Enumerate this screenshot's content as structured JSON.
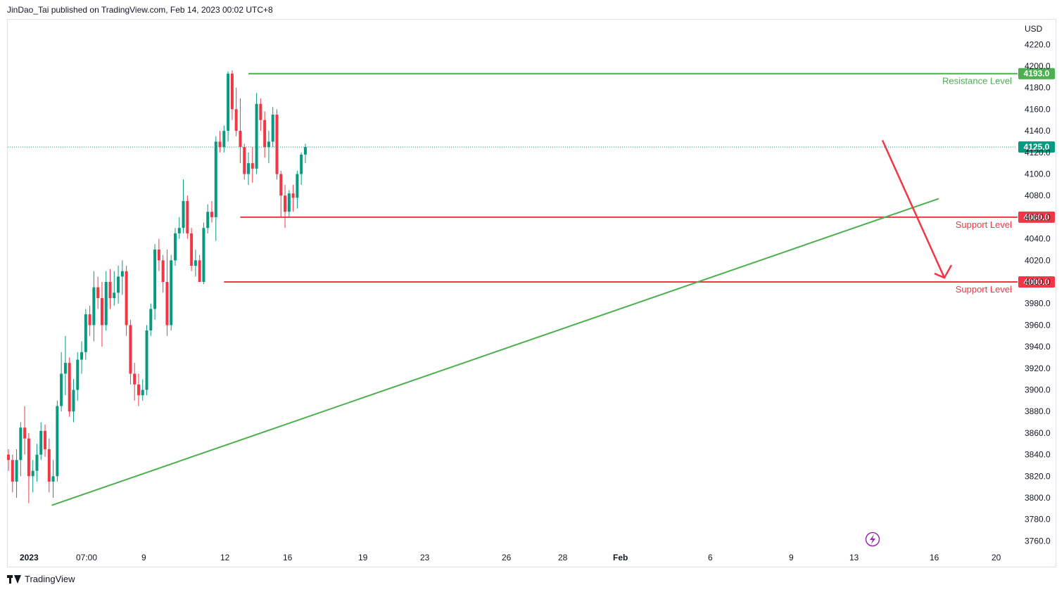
{
  "header": {
    "publisher_line": "JinDao_Tai published on TradingView.com, Feb 14, 2023 00:02 UTC+8"
  },
  "footer": {
    "brand": "TradingView"
  },
  "colors": {
    "up": "#089981",
    "down": "#f23645",
    "resistance": "#4caf50",
    "support": "#f23645",
    "trend": "#4caf50",
    "arrow": "#f23645",
    "last_price_tag": "#089981",
    "text": "#131722"
  },
  "icons": {
    "lightning": "lightning-icon",
    "brand": "tradingview-logo-icon"
  },
  "chart_data": {
    "type": "candlestick",
    "currency": "USD",
    "ylim": [
      3750,
      4235
    ],
    "y_ticks": [
      4220.0,
      4200.0,
      4180.0,
      4160.0,
      4140.0,
      4120.0,
      4100.0,
      4080.0,
      4060.0,
      4040.0,
      4020.0,
      4000.0,
      3980.0,
      3960.0,
      3940.0,
      3920.0,
      3900.0,
      3880.0,
      3860.0,
      3840.0,
      3820.0,
      3800.0,
      3780.0,
      3760.0
    ],
    "x_labels": [
      "2023",
      "07:00",
      "9",
      "12",
      "16",
      "19",
      "23",
      "26",
      "28",
      "Feb",
      "6",
      "9",
      "13",
      "16",
      "20"
    ],
    "last_price": {
      "value": 4125.0,
      "label": "4125.0"
    },
    "levels": [
      {
        "name": "Resistance Level",
        "value": 4193.0,
        "label": "4193.0",
        "kind": "resistance",
        "start_bar": 59
      },
      {
        "name": "Support Level",
        "value": 4060.0,
        "label": "4060.0",
        "kind": "support",
        "start_bar": 57
      },
      {
        "name": "Support Level",
        "value": 4000.0,
        "label": "4000.0",
        "kind": "support",
        "start_bar": 53
      }
    ],
    "trendline": {
      "from": {
        "bar": 11,
        "value": 3795
      },
      "to": {
        "bar": 85,
        "value": 4085
      }
    },
    "projection_arrow": {
      "from": {
        "bar": 77,
        "value": 4128
      },
      "via": {
        "bar": 82,
        "value": 4040
      },
      "to": {
        "bar": 84,
        "value": 3998
      }
    },
    "candles": [
      [
        3840,
        3845,
        3825,
        3835
      ],
      [
        3835,
        3840,
        3805,
        3815
      ],
      [
        3815,
        3845,
        3800,
        3835
      ],
      [
        3835,
        3870,
        3820,
        3865
      ],
      [
        3865,
        3885,
        3840,
        3855
      ],
      [
        3855,
        3860,
        3795,
        3820
      ],
      [
        3820,
        3835,
        3805,
        3825
      ],
      [
        3825,
        3850,
        3815,
        3840
      ],
      [
        3840,
        3870,
        3835,
        3862
      ],
      [
        3862,
        3868,
        3838,
        3845
      ],
      [
        3845,
        3855,
        3805,
        3815
      ],
      [
        3815,
        3835,
        3800,
        3820
      ],
      [
        3820,
        3890,
        3815,
        3885
      ],
      [
        3885,
        3935,
        3880,
        3915
      ],
      [
        3915,
        3950,
        3895,
        3925
      ],
      [
        3925,
        3930,
        3875,
        3880
      ],
      [
        3880,
        3910,
        3870,
        3900
      ],
      [
        3900,
        3935,
        3890,
        3928
      ],
      [
        3928,
        3945,
        3915,
        3935
      ],
      [
        3935,
        3975,
        3928,
        3970
      ],
      [
        3970,
        3978,
        3950,
        3960
      ],
      [
        3960,
        4010,
        3945,
        3995
      ],
      [
        3995,
        4005,
        3975,
        3985
      ],
      [
        3985,
        4000,
        3940,
        3960
      ],
      [
        3960,
        4010,
        3955,
        4000
      ],
      [
        4000,
        4012,
        3975,
        3985
      ],
      [
        3985,
        4010,
        3978,
        3990
      ],
      [
        3990,
        4015,
        3980,
        4005
      ],
      [
        4005,
        4020,
        3988,
        4010
      ],
      [
        4010,
        4015,
        3950,
        3960
      ],
      [
        3960,
        3965,
        3905,
        3915
      ],
      [
        3915,
        3925,
        3890,
        3905
      ],
      [
        3905,
        3915,
        3885,
        3895
      ],
      [
        3895,
        3910,
        3890,
        3900
      ],
      [
        3900,
        3960,
        3895,
        3955
      ],
      [
        3955,
        3980,
        3950,
        3975
      ],
      [
        3975,
        4035,
        3965,
        4030
      ],
      [
        4030,
        4040,
        4010,
        4020
      ],
      [
        4020,
        4025,
        3990,
        4000
      ],
      [
        4000,
        4030,
        3950,
        3960
      ],
      [
        3960,
        4025,
        3955,
        4020
      ],
      [
        4020,
        4050,
        4015,
        4045
      ],
      [
        4045,
        4060,
        4040,
        4050
      ],
      [
        4050,
        4095,
        4045,
        4075
      ],
      [
        4075,
        4080,
        4040,
        4045
      ],
      [
        4045,
        4050,
        4010,
        4015
      ],
      [
        4015,
        4030,
        4005,
        4020
      ],
      [
        4020,
        4025,
        4000,
        4000
      ],
      [
        4000,
        4055,
        3998,
        4050
      ],
      [
        4050,
        4072,
        4045,
        4065
      ],
      [
        4065,
        4075,
        4055,
        4060
      ],
      [
        4060,
        4135,
        4038,
        4130
      ],
      [
        4130,
        4140,
        4120,
        4125
      ],
      [
        4125,
        4145,
        4120,
        4140
      ],
      [
        4140,
        4195,
        4130,
        4193
      ],
      [
        4193,
        4196,
        4150,
        4160
      ],
      [
        4160,
        4180,
        4135,
        4140
      ],
      [
        4140,
        4170,
        4110,
        4125
      ],
      [
        4125,
        4128,
        4095,
        4100
      ],
      [
        4100,
        4120,
        4090,
        4110
      ],
      [
        4110,
        4125,
        4092,
        4105
      ],
      [
        4105,
        4175,
        4100,
        4165
      ],
      [
        4165,
        4170,
        4140,
        4150
      ],
      [
        4150,
        4158,
        4115,
        4125
      ],
      [
        4125,
        4140,
        4110,
        4130
      ],
      [
        4130,
        4162,
        4125,
        4155
      ],
      [
        4155,
        4160,
        4095,
        4100
      ],
      [
        4100,
        4103,
        4060,
        4080
      ],
      [
        4080,
        4090,
        4050,
        4065
      ],
      [
        4065,
        4085,
        4060,
        4082
      ],
      [
        4082,
        4090,
        4065,
        4078
      ],
      [
        4078,
        4103,
        4068,
        4100
      ],
      [
        4100,
        4120,
        4090,
        4118
      ],
      [
        4118,
        4128,
        4110,
        4125
      ]
    ]
  }
}
